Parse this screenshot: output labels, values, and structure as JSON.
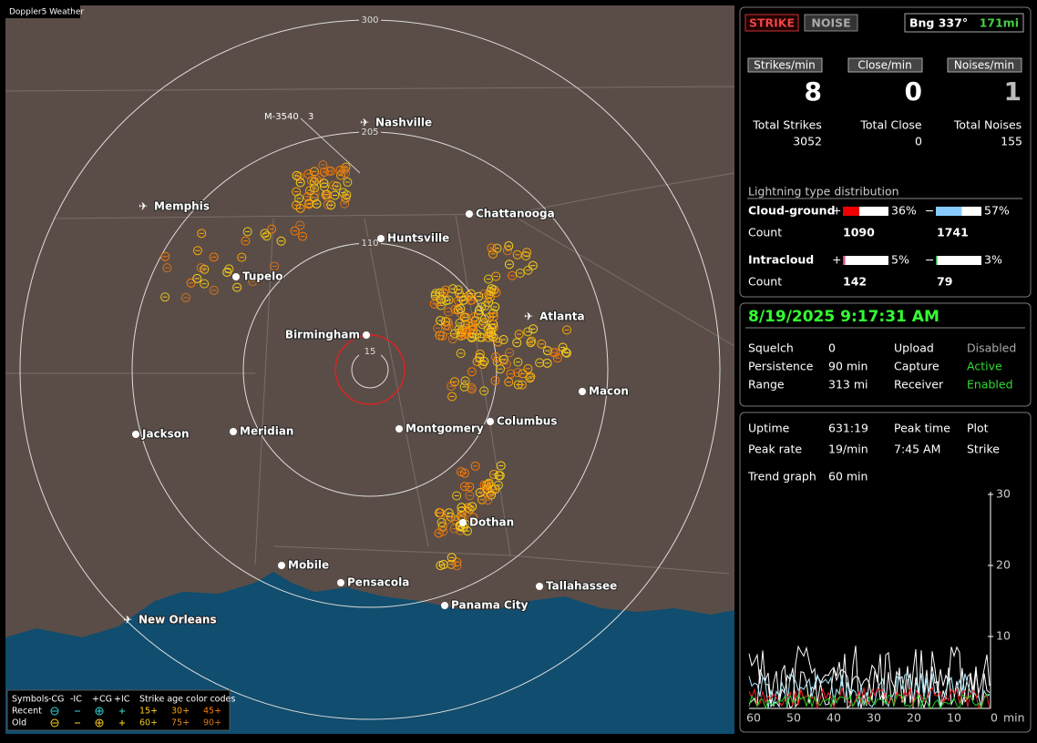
{
  "map": {
    "title": "Doppler5 Weather",
    "rings": [
      "300",
      "205",
      "110",
      "15"
    ],
    "marker": {
      "label": "M-3540",
      "count": "3"
    },
    "cities": [
      "Nashville",
      "Memphis",
      "Chattanooga",
      "Huntsville",
      "Tupelo",
      "Birmingham",
      "Atlanta",
      "Macon",
      "Jackson",
      "Meridian",
      "Montgomery",
      "Columbus",
      "Dothan",
      "Mobile",
      "Pensacola",
      "Tallahassee",
      "Panama City",
      "New Orleans"
    ],
    "legend": {
      "symbols": "Symbols",
      "types": [
        "-CG",
        "-IC",
        "+CG",
        "+IC"
      ],
      "age_title": "Strike age color codes",
      "rows": [
        "Recent",
        "Old"
      ],
      "ages": [
        [
          "15+",
          "30+",
          "45+"
        ],
        [
          "60+",
          "75+",
          "90+"
        ]
      ]
    }
  },
  "panel": {
    "mode": [
      "STRIKE",
      "NOISE"
    ],
    "bearing": "Bng 337°",
    "distance": "171mi",
    "rates": [
      {
        "label": "Strikes/min",
        "value": "8"
      },
      {
        "label": "Close/min",
        "value": "0"
      },
      {
        "label": "Noises/min",
        "value": "1"
      }
    ],
    "totals": [
      {
        "label": "Total Strikes",
        "value": "3052"
      },
      {
        "label": "Total Close",
        "value": "0"
      },
      {
        "label": "Total Noises",
        "value": "155"
      }
    ],
    "distribution": {
      "title": "Lightning type distribution",
      "rows": [
        {
          "label": "Cloud-ground",
          "pos": {
            "sign": "+",
            "value": 36,
            "label": "36%"
          },
          "neg": {
            "sign": "−",
            "value": 57,
            "label": "57%"
          },
          "count_label": "Count",
          "counts": [
            "1090",
            "1741"
          ]
        },
        {
          "label": "Intracloud",
          "pos": {
            "sign": "+",
            "value": 5,
            "label": "5%"
          },
          "neg": {
            "sign": "−",
            "value": 3,
            "label": "3%"
          },
          "count_label": "Count",
          "counts": [
            "142",
            "79"
          ]
        }
      ]
    },
    "datetime": "8/19/2025 9:17:31 AM",
    "settings": [
      [
        "Squelch",
        "0",
        "Upload",
        "Disabled"
      ],
      [
        "Persistence",
        "90 min",
        "Capture",
        "Active"
      ],
      [
        "Range",
        "313 mi",
        "Receiver",
        "Enabled"
      ]
    ],
    "stats": {
      "uptime": [
        "Uptime",
        "631:19"
      ],
      "peak_rate": [
        "Peak rate",
        "19/min"
      ],
      "peak_time": [
        "Peak time",
        "7:45 AM"
      ],
      "plot": [
        "Plot",
        "Strike"
      ],
      "trend": [
        "Trend graph",
        "60 min"
      ]
    },
    "trend": {
      "yticks": [
        "30",
        "20",
        "10"
      ],
      "xticks": [
        "60",
        "50",
        "40",
        "30",
        "20",
        "10",
        "0"
      ],
      "unit": "min"
    }
  }
}
